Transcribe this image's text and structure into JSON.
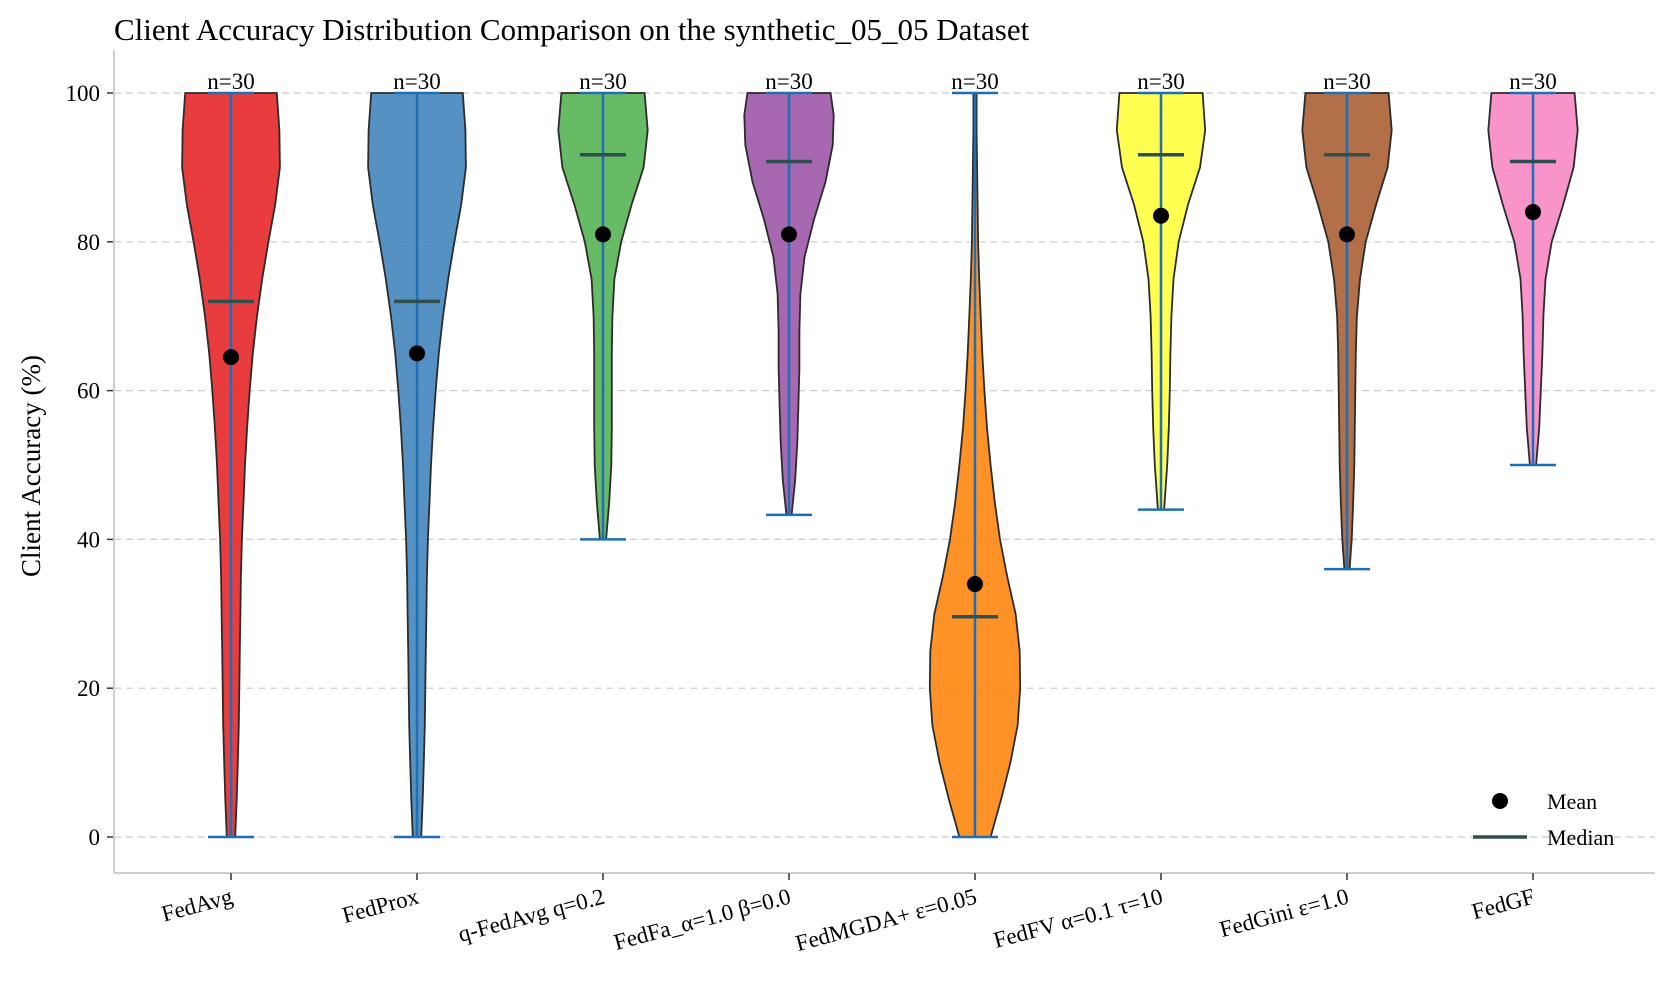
{
  "chart_data": {
    "type": "violin",
    "title": "Client Accuracy Distribution Comparison on the synthetic_05_05 Dataset",
    "ylabel": "Client Accuracy (%)",
    "xlabel": "",
    "ylim": [
      -5,
      105
    ],
    "yticks": [
      0,
      20,
      40,
      60,
      80,
      100
    ],
    "grid": "horizontal dashed",
    "legend": {
      "position": "bottom-right",
      "items": [
        {
          "label": "Mean",
          "marker": "dot",
          "color": "#000000"
        },
        {
          "label": "Median",
          "marker": "line",
          "color": "#2f4f4f"
        }
      ]
    },
    "series": [
      {
        "name": "FedAvg",
        "color": "#e41a1c",
        "n_label": "n=30",
        "min": 0,
        "max": 100,
        "mean": 64.5,
        "median": 72,
        "profile": [
          [
            0,
            0.08
          ],
          [
            5,
            0.11
          ],
          [
            10,
            0.13
          ],
          [
            15,
            0.15
          ],
          [
            20,
            0.16
          ],
          [
            25,
            0.17
          ],
          [
            30,
            0.18
          ],
          [
            35,
            0.19
          ],
          [
            40,
            0.21
          ],
          [
            45,
            0.24
          ],
          [
            50,
            0.27
          ],
          [
            55,
            0.31
          ],
          [
            60,
            0.36
          ],
          [
            65,
            0.42
          ],
          [
            70,
            0.5
          ],
          [
            75,
            0.6
          ],
          [
            80,
            0.72
          ],
          [
            85,
            0.85
          ],
          [
            90,
            0.94
          ],
          [
            95,
            0.93
          ],
          [
            100,
            0.88
          ]
        ]
      },
      {
        "name": "FedProx",
        "color": "#377eb8",
        "n_label": "n=30",
        "min": 0,
        "max": 100,
        "mean": 65,
        "median": 72,
        "profile": [
          [
            0,
            0.08
          ],
          [
            5,
            0.11
          ],
          [
            10,
            0.13
          ],
          [
            15,
            0.15
          ],
          [
            20,
            0.16
          ],
          [
            25,
            0.17
          ],
          [
            30,
            0.18
          ],
          [
            35,
            0.19
          ],
          [
            40,
            0.21
          ],
          [
            45,
            0.24
          ],
          [
            50,
            0.27
          ],
          [
            55,
            0.31
          ],
          [
            60,
            0.36
          ],
          [
            65,
            0.42
          ],
          [
            70,
            0.5
          ],
          [
            75,
            0.6
          ],
          [
            80,
            0.72
          ],
          [
            85,
            0.85
          ],
          [
            90,
            0.94
          ],
          [
            95,
            0.93
          ],
          [
            100,
            0.88
          ]
        ]
      },
      {
        "name": "q-FedAvg q=0.2",
        "color": "#4daf4a",
        "n_label": "n=30",
        "min": 40,
        "max": 100,
        "mean": 81,
        "median": 91.7,
        "profile": [
          [
            40,
            0.06
          ],
          [
            45,
            0.12
          ],
          [
            50,
            0.16
          ],
          [
            55,
            0.17
          ],
          [
            60,
            0.17
          ],
          [
            65,
            0.17
          ],
          [
            70,
            0.18
          ],
          [
            75,
            0.22
          ],
          [
            80,
            0.35
          ],
          [
            85,
            0.55
          ],
          [
            90,
            0.78
          ],
          [
            95,
            0.86
          ],
          [
            100,
            0.8
          ]
        ]
      },
      {
        "name": "FedFa_α=1.0 β=0.0",
        "color": "#984ea3",
        "n_label": "n=30",
        "min": 43.3,
        "max": 100,
        "mean": 81,
        "median": 90.8,
        "profile": [
          [
            43.3,
            0.05
          ],
          [
            48,
            0.12
          ],
          [
            53,
            0.16
          ],
          [
            58,
            0.18
          ],
          [
            63,
            0.2
          ],
          [
            68,
            0.2
          ],
          [
            73,
            0.22
          ],
          [
            78,
            0.3
          ],
          [
            83,
            0.48
          ],
          [
            88,
            0.7
          ],
          [
            93,
            0.84
          ],
          [
            97,
            0.86
          ],
          [
            100,
            0.8
          ]
        ]
      },
      {
        "name": "FedMGDA+ ε=0.05",
        "color": "#ff7f00",
        "n_label": "n=30",
        "min": 0,
        "max": 100,
        "mean": 34,
        "median": 29.6,
        "profile": [
          [
            0,
            0.3
          ],
          [
            5,
            0.5
          ],
          [
            10,
            0.68
          ],
          [
            15,
            0.82
          ],
          [
            20,
            0.87
          ],
          [
            25,
            0.86
          ],
          [
            30,
            0.78
          ],
          [
            35,
            0.62
          ],
          [
            40,
            0.48
          ],
          [
            45,
            0.38
          ],
          [
            50,
            0.3
          ],
          [
            55,
            0.23
          ],
          [
            60,
            0.18
          ],
          [
            65,
            0.14
          ],
          [
            70,
            0.11
          ],
          [
            75,
            0.08
          ],
          [
            80,
            0.06
          ],
          [
            85,
            0.05
          ],
          [
            90,
            0.04
          ],
          [
            95,
            0.03
          ],
          [
            100,
            0.03
          ]
        ]
      },
      {
        "name": "FedFV α=0.1 τ=10",
        "color": "#ffff33",
        "n_label": "n=30",
        "min": 44,
        "max": 100,
        "mean": 83.5,
        "median": 91.7,
        "profile": [
          [
            44,
            0.06
          ],
          [
            50,
            0.12
          ],
          [
            55,
            0.15
          ],
          [
            60,
            0.17
          ],
          [
            65,
            0.18
          ],
          [
            70,
            0.2
          ],
          [
            75,
            0.24
          ],
          [
            80,
            0.34
          ],
          [
            85,
            0.52
          ],
          [
            90,
            0.75
          ],
          [
            95,
            0.85
          ],
          [
            100,
            0.8
          ]
        ]
      },
      {
        "name": "FedGini ε=1.0",
        "color": "#a65628",
        "n_label": "n=30",
        "min": 36,
        "max": 100,
        "mean": 81,
        "median": 91.7,
        "profile": [
          [
            36,
            0.05
          ],
          [
            40,
            0.09
          ],
          [
            45,
            0.12
          ],
          [
            50,
            0.14
          ],
          [
            55,
            0.15
          ],
          [
            60,
            0.16
          ],
          [
            65,
            0.17
          ],
          [
            70,
            0.19
          ],
          [
            75,
            0.25
          ],
          [
            80,
            0.36
          ],
          [
            85,
            0.56
          ],
          [
            90,
            0.78
          ],
          [
            95,
            0.86
          ],
          [
            100,
            0.8
          ]
        ]
      },
      {
        "name": "FedGF",
        "color": "#f781bf",
        "n_label": "n=30",
        "min": 50,
        "max": 100,
        "mean": 84,
        "median": 90.8,
        "profile": [
          [
            50,
            0.06
          ],
          [
            55,
            0.12
          ],
          [
            60,
            0.15
          ],
          [
            65,
            0.18
          ],
          [
            70,
            0.2
          ],
          [
            75,
            0.24
          ],
          [
            80,
            0.36
          ],
          [
            85,
            0.58
          ],
          [
            90,
            0.78
          ],
          [
            95,
            0.86
          ],
          [
            100,
            0.8
          ]
        ]
      }
    ]
  }
}
